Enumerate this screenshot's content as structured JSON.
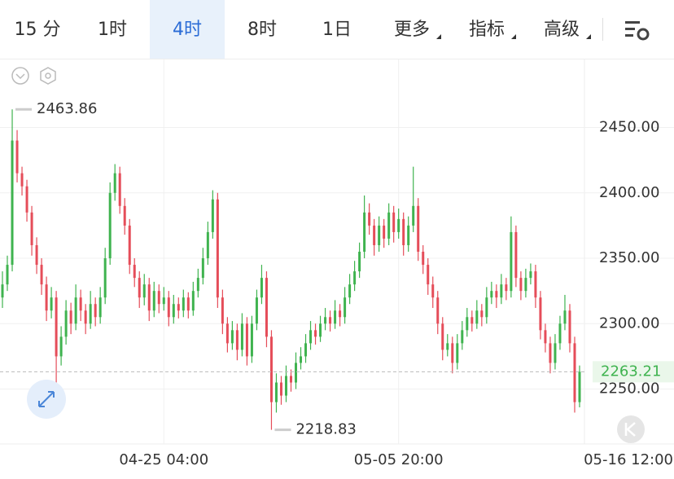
{
  "toolbar": {
    "tabs": [
      "15 分",
      "1时",
      "4时",
      "8时",
      "1日",
      "更多",
      "指标",
      "高级"
    ],
    "active": 2
  },
  "chart_data": {
    "type": "candlestick",
    "up_color": "#3fb34f",
    "down_color": "#e54d59",
    "grid": true,
    "xlim": [
      -0.5,
      119
    ],
    "ylim": [
      2208,
      2502
    ],
    "xticks": [
      {
        "value": 33,
        "label": "04-25 04:00"
      },
      {
        "value": 81,
        "label": "05-05 20:00"
      },
      {
        "value": 128,
        "label": "05-16 12:00"
      }
    ],
    "yticks": [
      {
        "value": 2250,
        "label": "2250.00"
      },
      {
        "value": 2300,
        "label": "2300.00"
      },
      {
        "value": 2350,
        "label": "2350.00"
      },
      {
        "value": 2400,
        "label": "2400.00"
      },
      {
        "value": 2450,
        "label": "2450.00"
      }
    ],
    "ohlc": [
      [
        2320,
        2340,
        2312,
        2330
      ],
      [
        2330,
        2352,
        2325,
        2345
      ],
      [
        2345,
        2463.86,
        2340,
        2440
      ],
      [
        2440,
        2448,
        2408,
        2415
      ],
      [
        2415,
        2420,
        2398,
        2405
      ],
      [
        2405,
        2410,
        2378,
        2385
      ],
      [
        2385,
        2390,
        2352,
        2360
      ],
      [
        2360,
        2366,
        2338,
        2345
      ],
      [
        2345,
        2350,
        2322,
        2330
      ],
      [
        2330,
        2336,
        2302,
        2310
      ],
      [
        2310,
        2328,
        2304,
        2320
      ],
      [
        2320,
        2325,
        2255,
        2275
      ],
      [
        2275,
        2298,
        2268,
        2290
      ],
      [
        2290,
        2318,
        2284,
        2310
      ],
      [
        2310,
        2316,
        2292,
        2300
      ],
      [
        2300,
        2330,
        2295,
        2320
      ],
      [
        2320,
        2326,
        2302,
        2310
      ],
      [
        2310,
        2315,
        2292,
        2300
      ],
      [
        2300,
        2325,
        2296,
        2315
      ],
      [
        2315,
        2320,
        2298,
        2305
      ],
      [
        2305,
        2328,
        2300,
        2320
      ],
      [
        2320,
        2358,
        2315,
        2350
      ],
      [
        2350,
        2408,
        2345,
        2400
      ],
      [
        2400,
        2422,
        2394,
        2415
      ],
      [
        2415,
        2420,
        2384,
        2390
      ],
      [
        2390,
        2396,
        2368,
        2375
      ],
      [
        2375,
        2380,
        2338,
        2345
      ],
      [
        2345,
        2350,
        2328,
        2335
      ],
      [
        2335,
        2340,
        2312,
        2320
      ],
      [
        2320,
        2338,
        2314,
        2330
      ],
      [
        2330,
        2335,
        2302,
        2310
      ],
      [
        2310,
        2332,
        2305,
        2325
      ],
      [
        2325,
        2330,
        2308,
        2315
      ],
      [
        2315,
        2328,
        2310,
        2320
      ],
      [
        2320,
        2325,
        2298,
        2305
      ],
      [
        2305,
        2322,
        2300,
        2315
      ],
      [
        2315,
        2320,
        2304,
        2310
      ],
      [
        2310,
        2326,
        2305,
        2320
      ],
      [
        2320,
        2324,
        2304,
        2310
      ],
      [
        2310,
        2332,
        2306,
        2325
      ],
      [
        2325,
        2342,
        2320,
        2335
      ],
      [
        2335,
        2358,
        2330,
        2350
      ],
      [
        2350,
        2378,
        2345,
        2370
      ],
      [
        2370,
        2402,
        2365,
        2395
      ],
      [
        2395,
        2400,
        2312,
        2320
      ],
      [
        2320,
        2326,
        2292,
        2300
      ],
      [
        2300,
        2305,
        2278,
        2285
      ],
      [
        2285,
        2302,
        2280,
        2295
      ],
      [
        2295,
        2300,
        2272,
        2280
      ],
      [
        2280,
        2308,
        2275,
        2300
      ],
      [
        2300,
        2305,
        2268,
        2275
      ],
      [
        2275,
        2306,
        2270,
        2300
      ],
      [
        2300,
        2326,
        2295,
        2320
      ],
      [
        2320,
        2345,
        2315,
        2335
      ],
      [
        2335,
        2340,
        2282,
        2290
      ],
      [
        2290,
        2295,
        2218.83,
        2240
      ],
      [
        2240,
        2262,
        2232,
        2255
      ],
      [
        2255,
        2260,
        2238,
        2245
      ],
      [
        2245,
        2268,
        2240,
        2260
      ],
      [
        2260,
        2265,
        2248,
        2255
      ],
      [
        2255,
        2278,
        2250,
        2270
      ],
      [
        2270,
        2282,
        2265,
        2275
      ],
      [
        2275,
        2292,
        2270,
        2285
      ],
      [
        2285,
        2302,
        2280,
        2295
      ],
      [
        2295,
        2300,
        2284,
        2290
      ],
      [
        2290,
        2306,
        2286,
        2300
      ],
      [
        2300,
        2312,
        2295,
        2305
      ],
      [
        2305,
        2310,
        2294,
        2300
      ],
      [
        2300,
        2318,
        2296,
        2310
      ],
      [
        2310,
        2315,
        2298,
        2305
      ],
      [
        2305,
        2328,
        2300,
        2320
      ],
      [
        2320,
        2338,
        2315,
        2330
      ],
      [
        2330,
        2348,
        2325,
        2340
      ],
      [
        2340,
        2362,
        2335,
        2355
      ],
      [
        2355,
        2398,
        2350,
        2385
      ],
      [
        2385,
        2392,
        2368,
        2375
      ],
      [
        2375,
        2380,
        2352,
        2360
      ],
      [
        2360,
        2382,
        2355,
        2375
      ],
      [
        2375,
        2380,
        2358,
        2365
      ],
      [
        2365,
        2392,
        2360,
        2385
      ],
      [
        2385,
        2390,
        2362,
        2370
      ],
      [
        2370,
        2388,
        2365,
        2380
      ],
      [
        2380,
        2385,
        2352,
        2360
      ],
      [
        2360,
        2382,
        2355,
        2375
      ],
      [
        2375,
        2420,
        2370,
        2390
      ],
      [
        2390,
        2396,
        2348,
        2355
      ],
      [
        2355,
        2360,
        2338,
        2345
      ],
      [
        2345,
        2350,
        2322,
        2330
      ],
      [
        2330,
        2336,
        2312,
        2320
      ],
      [
        2320,
        2325,
        2292,
        2300
      ],
      [
        2300,
        2305,
        2272,
        2280
      ],
      [
        2280,
        2292,
        2275,
        2285
      ],
      [
        2285,
        2290,
        2262,
        2270
      ],
      [
        2270,
        2292,
        2265,
        2285
      ],
      [
        2285,
        2302,
        2280,
        2295
      ],
      [
        2295,
        2312,
        2290,
        2305
      ],
      [
        2305,
        2310,
        2294,
        2300
      ],
      [
        2300,
        2318,
        2296,
        2310
      ],
      [
        2310,
        2315,
        2298,
        2305
      ],
      [
        2305,
        2328,
        2300,
        2320
      ],
      [
        2320,
        2332,
        2315,
        2325
      ],
      [
        2325,
        2330,
        2312,
        2320
      ],
      [
        2320,
        2338,
        2315,
        2330
      ],
      [
        2330,
        2335,
        2318,
        2325
      ],
      [
        2325,
        2382,
        2320,
        2370
      ],
      [
        2370,
        2375,
        2328,
        2335
      ],
      [
        2335,
        2340,
        2318,
        2325
      ],
      [
        2325,
        2342,
        2320,
        2335
      ],
      [
        2335,
        2346,
        2330,
        2340
      ],
      [
        2340,
        2345,
        2312,
        2320
      ],
      [
        2320,
        2325,
        2288,
        2295
      ],
      [
        2295,
        2300,
        2278,
        2285
      ],
      [
        2285,
        2290,
        2262,
        2270
      ],
      [
        2270,
        2292,
        2265,
        2285
      ],
      [
        2285,
        2306,
        2280,
        2300
      ],
      [
        2300,
        2322,
        2295,
        2310
      ],
      [
        2310,
        2315,
        2278,
        2285
      ],
      [
        2285,
        2290,
        2232,
        2240
      ],
      [
        2240,
        2268,
        2236,
        2263.21
      ]
    ]
  }
}
